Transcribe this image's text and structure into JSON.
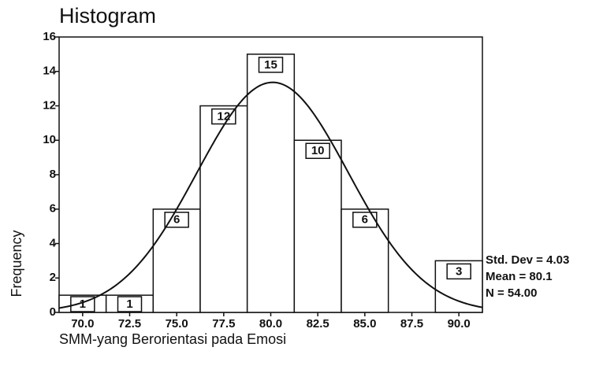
{
  "chart_data": {
    "type": "histogram",
    "title": "Histogram",
    "x_label": "SMM-yang Berorientasi pada Emosi",
    "y_label": "Frequency",
    "bins": [
      68.75,
      71.25,
      73.75,
      76.25,
      78.75,
      81.25,
      83.75,
      86.25,
      88.75,
      91.25
    ],
    "values": [
      1,
      1,
      6,
      12,
      15,
      10,
      6,
      0,
      3
    ],
    "color": "#ffffff",
    "xlim": [
      68.75,
      91.25
    ],
    "ylim": [
      0,
      16
    ],
    "xticks": [
      {
        "value": 70,
        "label": "70.0"
      },
      {
        "value": 72.5,
        "label": "72.5"
      },
      {
        "value": 75,
        "label": "75.0"
      },
      {
        "value": 77.5,
        "label": "77.5"
      },
      {
        "value": 80,
        "label": "80.0"
      },
      {
        "value": 82.5,
        "label": "82.5"
      },
      {
        "value": 85,
        "label": "85.0"
      },
      {
        "value": 87.5,
        "label": "87.5"
      },
      {
        "value": 90,
        "label": "90.0"
      }
    ],
    "yticks": [
      0,
      2,
      4,
      6,
      8,
      10,
      12,
      14,
      16
    ],
    "normal_curve": {
      "std_dev": 4.03,
      "mean": 80.1,
      "n": 54
    },
    "stats_labels": [
      "Std. Dev = 4.03",
      "Mean = 80.1",
      "N = 54.00"
    ]
  }
}
